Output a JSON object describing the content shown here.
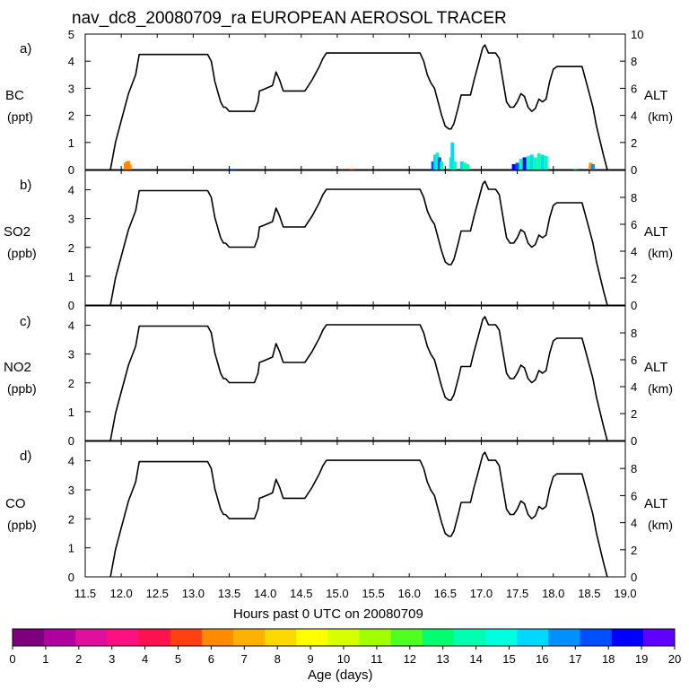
{
  "title": "nav_dc8_20080709_ra EUROPEAN AEROSOL TRACER",
  "xaxis": {
    "label": "Hours past 0 UTC on 20080709",
    "range": [
      11.5,
      19.0
    ],
    "ticks": [
      "11.5",
      "12.0",
      "12.5",
      "13.0",
      "13.5",
      "14.0",
      "14.5",
      "15.0",
      "15.5",
      "16.0",
      "16.5",
      "17.0",
      "17.5",
      "18.0",
      "18.5",
      "19.0"
    ]
  },
  "colorbar": {
    "label": "Age (days)",
    "ticks": [
      "0",
      "1",
      "2",
      "3",
      "4",
      "5",
      "6",
      "7",
      "8",
      "9",
      "10",
      "11",
      "12",
      "13",
      "14",
      "15",
      "16",
      "17",
      "18",
      "19",
      "20"
    ],
    "colors": [
      "#7f007f",
      "#b0009f",
      "#e0109f",
      "#ff1080",
      "#ff1050",
      "#ff4010",
      "#ff8c00",
      "#ffb000",
      "#ffd800",
      "#ffff00",
      "#d8ff00",
      "#a0ff00",
      "#50ff20",
      "#00ff70",
      "#00ffb0",
      "#00ffe0",
      "#00d8ff",
      "#0090ff",
      "#0050ff",
      "#0000ff",
      "#6000ff"
    ]
  },
  "panels": [
    {
      "letter": "a)",
      "species": "BC",
      "unit": "(ppt)",
      "ymax": 5,
      "yticks": [
        "0",
        "1",
        "2",
        "3",
        "4",
        "5"
      ]
    },
    {
      "letter": "b)",
      "species": "SO2",
      "unit": "(ppb)",
      "ymax": 4.67,
      "yticks": [
        "0",
        "1",
        "2",
        "3",
        "4"
      ]
    },
    {
      "letter": "c)",
      "species": "NO2",
      "unit": "(ppb)",
      "ymax": 4.67,
      "yticks": [
        "0",
        "1",
        "2",
        "3",
        "4"
      ]
    },
    {
      "letter": "d)",
      "species": "CO",
      "unit": "(ppb)",
      "ymax": 4.67,
      "yticks": [
        "0",
        "1",
        "2",
        "3",
        "4"
      ]
    }
  ],
  "right_axis": {
    "label": "ALT",
    "unit": "(km)",
    "range": [
      0,
      10
    ],
    "ticks": [
      "0",
      "2",
      "4",
      "6",
      "8",
      "10"
    ]
  },
  "chart_data": {
    "type": "line",
    "title": "nav_dc8_20080709_ra EUROPEAN AEROSOL TRACER",
    "xlabel": "Hours past 0 UTC on 20080709",
    "xlim": [
      11.5,
      19.0
    ],
    "altitude_series": {
      "name": "ALT (km)",
      "x": [
        11.85,
        11.92,
        12.0,
        12.1,
        12.2,
        12.25,
        13.2,
        13.25,
        13.3,
        13.38,
        13.42,
        13.45,
        13.5,
        13.55,
        13.85,
        13.9,
        13.92,
        13.97,
        14.1,
        14.15,
        14.2,
        14.25,
        14.3,
        14.55,
        14.6,
        14.65,
        14.75,
        14.8,
        14.85,
        14.92,
        16.15,
        16.2,
        16.25,
        16.3,
        16.35,
        16.4,
        16.45,
        16.5,
        16.55,
        16.58,
        16.62,
        16.68,
        16.72,
        16.78,
        16.85,
        16.9,
        16.95,
        17.0,
        17.02,
        17.05,
        17.1,
        17.2,
        17.25,
        17.3,
        17.35,
        17.4,
        17.45,
        17.5,
        17.55,
        17.6,
        17.65,
        17.7,
        17.75,
        17.8,
        17.85,
        17.9,
        17.95,
        18.0,
        18.05,
        18.35,
        18.4,
        18.45,
        18.5,
        18.55,
        18.6,
        18.65,
        18.7,
        18.75
      ],
      "y": [
        0,
        2.0,
        3.6,
        5.6,
        7.0,
        8.5,
        8.5,
        8.0,
        6.5,
        5.0,
        4.6,
        4.6,
        4.3,
        4.3,
        4.3,
        5.0,
        5.8,
        5.9,
        6.2,
        7.2,
        6.6,
        5.8,
        5.8,
        5.8,
        6.2,
        6.6,
        7.6,
        8.2,
        8.6,
        8.6,
        8.6,
        8.0,
        7.0,
        6.4,
        6.0,
        5.0,
        4.0,
        3.2,
        3.0,
        3.0,
        3.4,
        4.6,
        5.5,
        5.5,
        5.5,
        6.6,
        7.6,
        8.6,
        9.0,
        9.2,
        8.6,
        8.6,
        8.2,
        6.6,
        5.0,
        4.6,
        4.6,
        5.0,
        5.6,
        5.4,
        4.6,
        4.3,
        4.5,
        5.2,
        5.0,
        5.2,
        6.5,
        7.4,
        7.6,
        7.6,
        7.6,
        6.6,
        5.6,
        4.6,
        3.2,
        2.1,
        1.0,
        0
      ],
      "ylim": [
        0,
        10
      ]
    },
    "bc_bars": [
      {
        "x": 12.06,
        "y": 0.25,
        "color": "#ff8c00"
      },
      {
        "x": 12.08,
        "y": 0.3,
        "color": "#ff8c00"
      },
      {
        "x": 12.1,
        "y": 0.32,
        "color": "#ff8c00"
      },
      {
        "x": 12.12,
        "y": 0.18,
        "color": "#ff8c00"
      },
      {
        "x": 13.55,
        "y": 0.03,
        "color": "#0090ff"
      },
      {
        "x": 15.2,
        "y": 0.04,
        "color": "#ff8c00"
      },
      {
        "x": 16.33,
        "y": 0.3,
        "color": "#0050ff"
      },
      {
        "x": 16.36,
        "y": 0.55,
        "color": "#00d8ff"
      },
      {
        "x": 16.39,
        "y": 0.62,
        "color": "#00ffb0"
      },
      {
        "x": 16.42,
        "y": 0.45,
        "color": "#0050ff"
      },
      {
        "x": 16.45,
        "y": 0.3,
        "color": "#00ffb0"
      },
      {
        "x": 16.58,
        "y": 0.45,
        "color": "#00ffb0"
      },
      {
        "x": 16.6,
        "y": 1.0,
        "color": "#00d8ff"
      },
      {
        "x": 16.63,
        "y": 0.3,
        "color": "#00ffb0"
      },
      {
        "x": 16.73,
        "y": 0.3,
        "color": "#00d8ff"
      },
      {
        "x": 16.77,
        "y": 0.25,
        "color": "#00ffb0"
      },
      {
        "x": 16.81,
        "y": 0.2,
        "color": "#00ffb0"
      },
      {
        "x": 17.45,
        "y": 0.2,
        "color": "#0000ff"
      },
      {
        "x": 17.5,
        "y": 0.25,
        "color": "#0050ff"
      },
      {
        "x": 17.55,
        "y": 0.4,
        "color": "#00ffb0"
      },
      {
        "x": 17.6,
        "y": 0.45,
        "color": "#0000ff"
      },
      {
        "x": 17.65,
        "y": 0.5,
        "color": "#00ffb0"
      },
      {
        "x": 17.7,
        "y": 0.55,
        "color": "#00d8ff"
      },
      {
        "x": 17.75,
        "y": 0.45,
        "color": "#00ffb0"
      },
      {
        "x": 17.8,
        "y": 0.6,
        "color": "#00ffb0"
      },
      {
        "x": 17.85,
        "y": 0.55,
        "color": "#00d8ff"
      },
      {
        "x": 17.9,
        "y": 0.5,
        "color": "#00ffb0"
      },
      {
        "x": 18.3,
        "y": 0.03,
        "color": "#00ffb0"
      },
      {
        "x": 18.52,
        "y": 0.25,
        "color": "#ff8c00"
      },
      {
        "x": 18.55,
        "y": 0.2,
        "color": "#0090ff"
      }
    ]
  }
}
